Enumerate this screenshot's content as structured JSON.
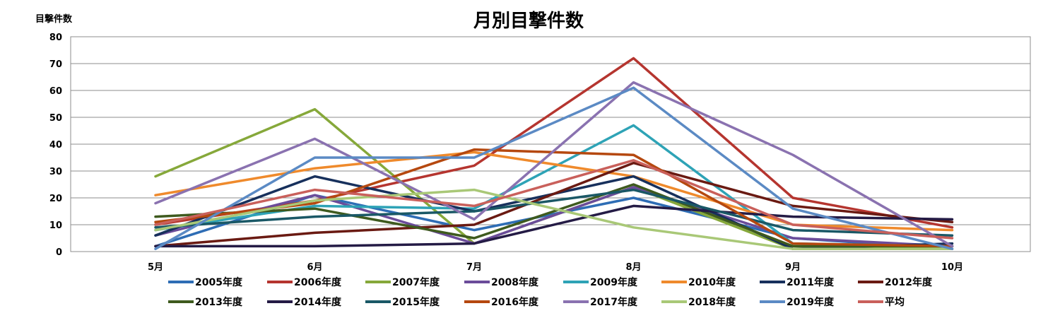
{
  "chart_data": {
    "type": "line",
    "title": "月別目撃件数",
    "xlabel": "",
    "ylabel": "目撃件数",
    "ylim": [
      0,
      80
    ],
    "yticks": [
      0,
      10,
      20,
      30,
      40,
      50,
      60,
      70,
      80
    ],
    "grid": true,
    "legend_position": "bottom",
    "categories": [
      "5月",
      "6月",
      "7月",
      "8月",
      "9月",
      "10月"
    ],
    "series": [
      {
        "name": "2005年度",
        "color": "#2e6db5",
        "values": [
          2,
          21,
          8,
          20,
          5,
          1
        ]
      },
      {
        "name": "2006年度",
        "color": "#b5352f",
        "values": [
          10,
          19,
          32,
          72,
          20,
          9
        ]
      },
      {
        "name": "2007年度",
        "color": "#86a83a",
        "values": [
          28,
          53,
          3,
          24,
          1,
          2
        ]
      },
      {
        "name": "2008年度",
        "color": "#6b4c9a",
        "values": [
          6,
          21,
          3,
          24,
          5,
          2
        ]
      },
      {
        "name": "2009年度",
        "color": "#2ea3b6",
        "values": [
          8,
          17,
          16,
          47,
          3,
          2
        ]
      },
      {
        "name": "2010年度",
        "color": "#ef8a2c",
        "values": [
          21,
          31,
          37,
          28,
          10,
          8
        ]
      },
      {
        "name": "2011年度",
        "color": "#17305c",
        "values": [
          6,
          28,
          15,
          28,
          1,
          3
        ]
      },
      {
        "name": "2012年度",
        "color": "#6a1a12",
        "values": [
          2,
          7,
          10,
          33,
          17,
          11
        ]
      },
      {
        "name": "2013年度",
        "color": "#3e5a1e",
        "values": [
          13,
          16,
          5,
          25,
          2,
          2
        ]
      },
      {
        "name": "2014年度",
        "color": "#241b45",
        "values": [
          2,
          2,
          3,
          17,
          13,
          12
        ]
      },
      {
        "name": "2015年度",
        "color": "#1a5866",
        "values": [
          9,
          13,
          15,
          23,
          8,
          6
        ]
      },
      {
        "name": "2016年度",
        "color": "#b5480f",
        "values": [
          11,
          18,
          38,
          36,
          3,
          2
        ]
      },
      {
        "name": "2017年度",
        "color": "#8a72b0",
        "values": [
          18,
          42,
          12,
          63,
          36,
          2
        ]
      },
      {
        "name": "2018年度",
        "color": "#a9c877",
        "values": [
          8,
          19,
          23,
          9,
          1,
          1
        ]
      },
      {
        "name": "2019年度",
        "color": "#5b8ac4",
        "values": [
          1,
          35,
          35,
          61,
          16,
          1
        ]
      },
      {
        "name": "平均",
        "color": "#c9605b",
        "values": [
          10,
          23,
          17,
          34,
          10,
          5
        ]
      }
    ]
  }
}
